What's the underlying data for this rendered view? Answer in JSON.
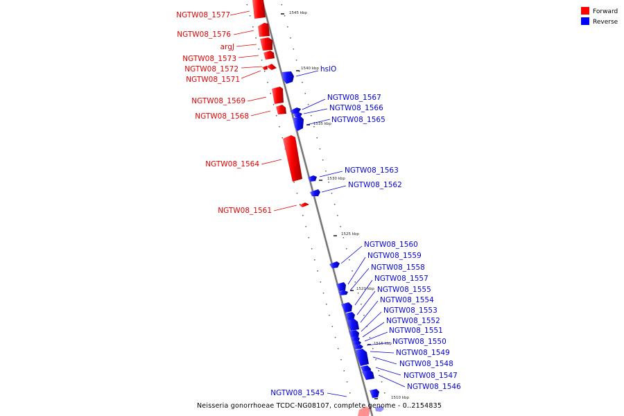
{
  "legend": {
    "forward_label": "Forward",
    "reverse_label": "Reverse",
    "forward_color": "#e00000",
    "reverse_color": "#0000f0"
  },
  "caption": "Neisseria gonorrhoeae TCDC-NG08107, complete genome - 0..2154835",
  "kbp_markers": [
    "1545 kbp",
    "1540 kbp",
    "1535 kbp",
    "1530 kbp",
    "1525 kbp",
    "1520 kbp",
    "1515 kbp",
    "1510 kbp"
  ],
  "forward_genes": [
    "NGTW08_1577",
    "NGTW08_1576",
    "argJ",
    "NGTW08_1573",
    "NGTW08_1572",
    "NGTW08_1571",
    "NGTW08_1569",
    "NGTW08_1568",
    "NGTW08_1564",
    "NGTW08_1561"
  ],
  "reverse_genes": [
    "hslO",
    "NGTW08_1567",
    "NGTW08_1566",
    "NGTW08_1565",
    "NGTW08_1563",
    "NGTW08_1562",
    "NGTW08_1560",
    "NGTW08_1559",
    "NGTW08_1558",
    "NGTW08_1557",
    "NGTW08_1555",
    "NGTW08_1554",
    "NGTW08_1553",
    "NGTW08_1552",
    "NGTW08_1551",
    "NGTW08_1550",
    "NGTW08_1549",
    "NGTW08_1548",
    "NGTW08_1547",
    "NGTW08_1546",
    "NGTW08_1545"
  ]
}
